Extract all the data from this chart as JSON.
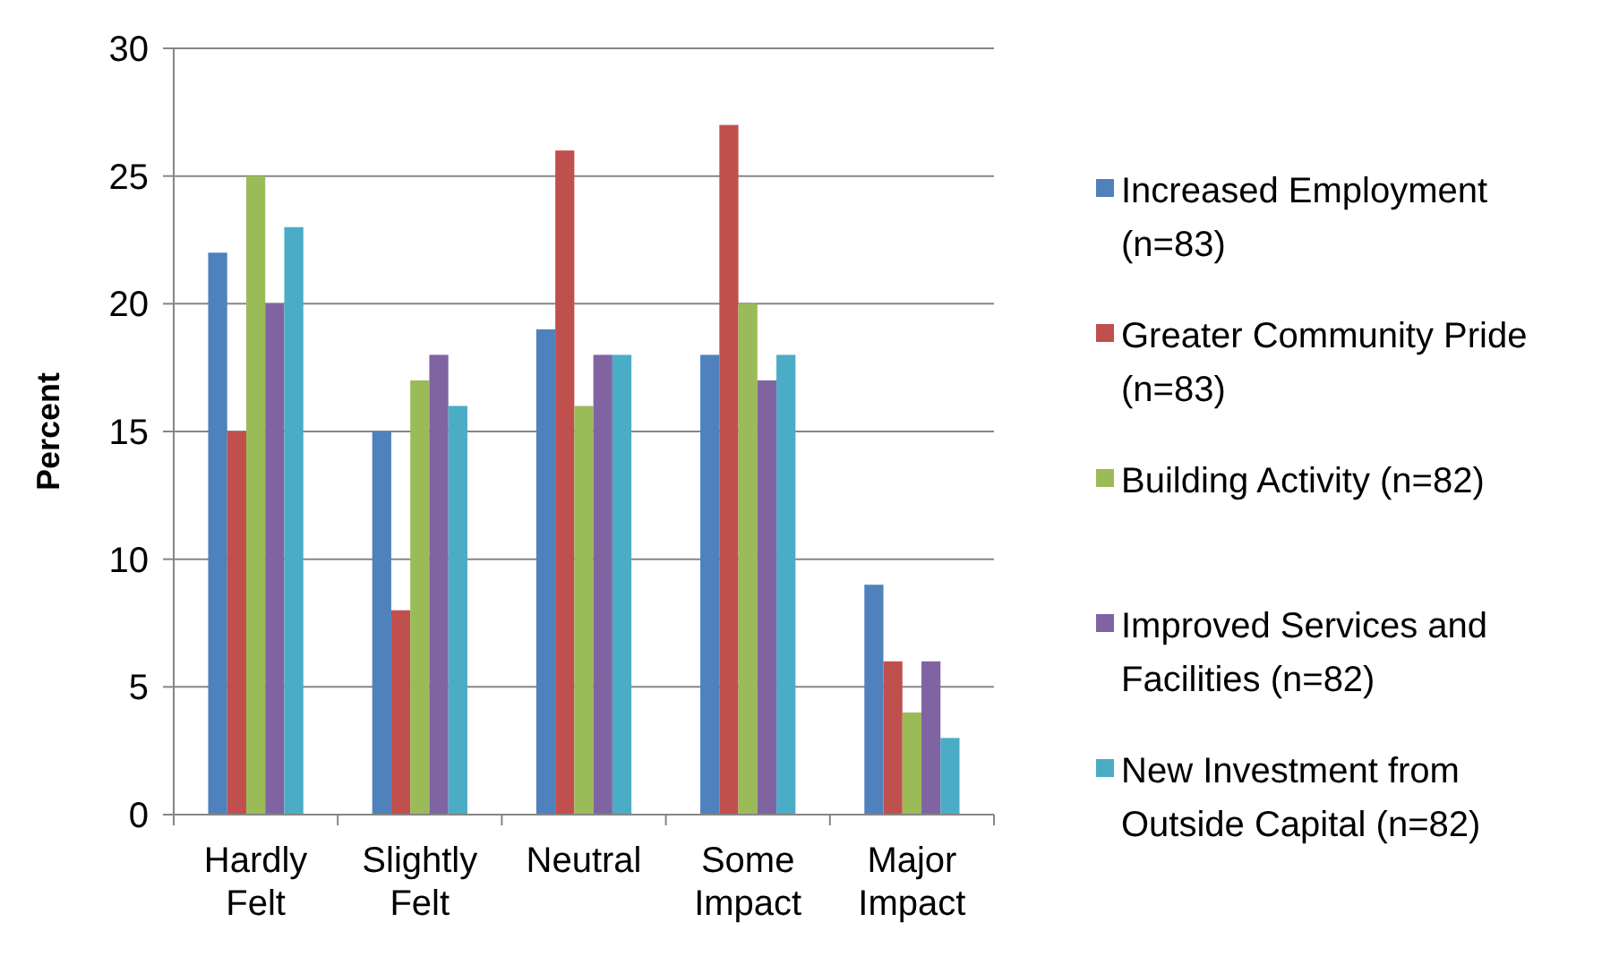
{
  "chart_data": {
    "type": "bar",
    "ylabel": "Percent",
    "categories": [
      "Hardly Felt",
      "Slightly Felt",
      "Neutral",
      "Some Impact",
      "Major Impact"
    ],
    "series": [
      {
        "name": "Increased Employment (n=83)",
        "color": "#4f81bd",
        "values": [
          22,
          15,
          19,
          18,
          9
        ]
      },
      {
        "name": "Greater Community Pride (n=83)",
        "color": "#c0504d",
        "values": [
          15,
          8,
          26,
          27,
          6
        ]
      },
      {
        "name": "Building Activity (n=82)",
        "color": "#9bbb59",
        "values": [
          25,
          17,
          16,
          20,
          4
        ]
      },
      {
        "name": "Improved Services and Facilities (n=82)",
        "color": "#8064a2",
        "values": [
          20,
          18,
          18,
          17,
          6
        ]
      },
      {
        "name": "New Investment from Outside Capital (n=82)",
        "color": "#4bacc6",
        "values": [
          23,
          16,
          18,
          18,
          3
        ]
      }
    ],
    "ylim": [
      0,
      30
    ],
    "yticks": [
      0,
      5,
      10,
      15,
      20,
      25,
      30
    ],
    "grid": "y",
    "legend": "right"
  }
}
